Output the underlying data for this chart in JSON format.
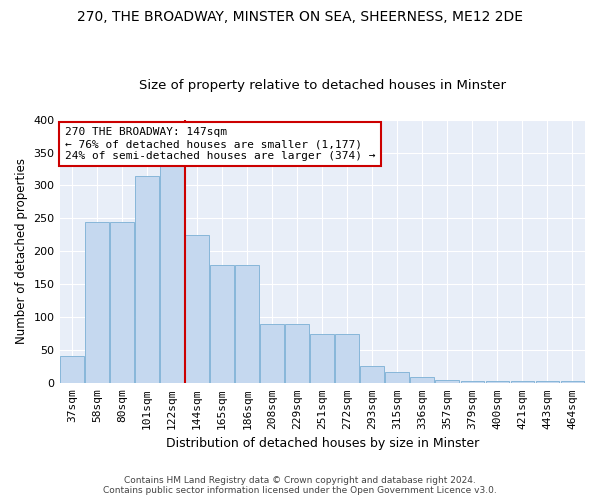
{
  "title1": "270, THE BROADWAY, MINSTER ON SEA, SHEERNESS, ME12 2DE",
  "title2": "Size of property relative to detached houses in Minster",
  "xlabel": "Distribution of detached houses by size in Minster",
  "ylabel": "Number of detached properties",
  "categories": [
    "37sqm",
    "58sqm",
    "80sqm",
    "101sqm",
    "122sqm",
    "144sqm",
    "165sqm",
    "186sqm",
    "208sqm",
    "229sqm",
    "251sqm",
    "272sqm",
    "293sqm",
    "315sqm",
    "336sqm",
    "357sqm",
    "379sqm",
    "400sqm",
    "421sqm",
    "443sqm",
    "464sqm"
  ],
  "values": [
    42,
    245,
    245,
    315,
    335,
    225,
    180,
    180,
    90,
    90,
    75,
    75,
    27,
    17,
    10,
    5,
    4,
    3,
    3,
    3,
    3
  ],
  "bar_color": "#c5d8ef",
  "bar_edge_color": "#7aafd4",
  "bar_width": 0.95,
  "vline_color": "#cc0000",
  "annotation_text": "270 THE BROADWAY: 147sqm\n← 76% of detached houses are smaller (1,177)\n24% of semi-detached houses are larger (374) →",
  "annotation_box_facecolor": "#ffffff",
  "annotation_box_edgecolor": "#cc0000",
  "ylim": [
    0,
    400
  ],
  "yticks": [
    0,
    50,
    100,
    150,
    200,
    250,
    300,
    350,
    400
  ],
  "plot_bg_color": "#e8eef8",
  "footer1": "Contains HM Land Registry data © Crown copyright and database right 2024.",
  "footer2": "Contains public sector information licensed under the Open Government Licence v3.0.",
  "title1_fontsize": 10,
  "title2_fontsize": 9.5,
  "xlabel_fontsize": 9,
  "ylabel_fontsize": 8.5,
  "tick_fontsize": 8,
  "annotation_fontsize": 8,
  "footer_fontsize": 6.5
}
